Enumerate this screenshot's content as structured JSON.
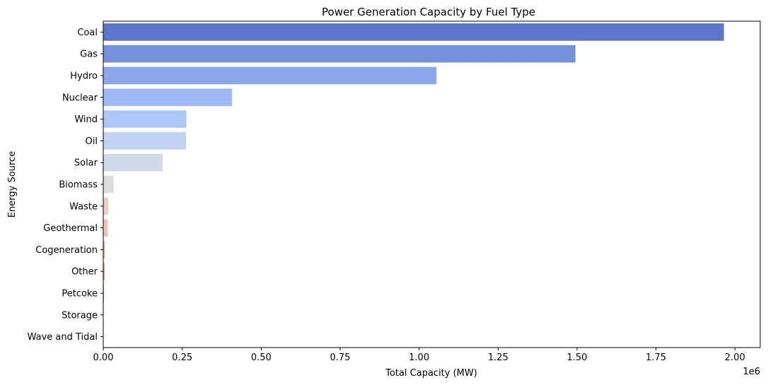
{
  "chart_data": {
    "type": "bar",
    "orientation": "horizontal",
    "title": "Power Generation Capacity by Fuel Type",
    "xlabel": "Total Capacity (MW)",
    "ylabel": "Energy Source",
    "x_offset_label": "1e6",
    "xlim": [
      0,
      2.08
    ],
    "xticks": [
      0,
      0.25,
      0.5,
      0.75,
      1.0,
      1.25,
      1.5,
      1.75,
      2.0
    ],
    "xtick_labels": [
      "0.00",
      "0.25",
      "0.50",
      "0.75",
      "1.00",
      "1.25",
      "1.50",
      "1.75",
      "2.00"
    ],
    "categories": [
      "Coal",
      "Gas",
      "Hydro",
      "Nuclear",
      "Wind",
      "Oil",
      "Solar",
      "Biomass",
      "Waste",
      "Geothermal",
      "Cogeneration",
      "Other",
      "Petcoke",
      "Storage",
      "Wave and Tidal"
    ],
    "values": [
      1.965,
      1.495,
      1.055,
      0.408,
      0.263,
      0.262,
      0.188,
      0.033,
      0.016,
      0.014,
      0.005,
      0.004,
      0.002,
      0.001,
      0.0005
    ],
    "unit_multiplier": 1000000,
    "colors": [
      "#5e75cb",
      "#7591dc",
      "#8aa6eb",
      "#9eb9f6",
      "#aec7f9",
      "#c0d3f3",
      "#d1dae9",
      "#dddcdc",
      "#eccfc4",
      "#f3c2ad",
      "#f1ad94",
      "#e8947c",
      "#dc7b66",
      "#cd6250",
      "#b8483e"
    ],
    "grid": false,
    "legend": "none"
  }
}
